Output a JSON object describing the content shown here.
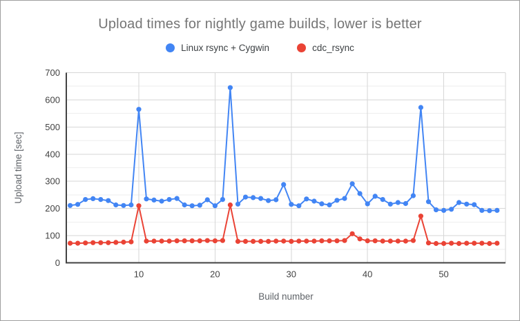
{
  "window": {
    "background": "#ffffff",
    "border_color": "#9e9e9e"
  },
  "colors": {
    "title_text": "#757575",
    "legend_text": "#3c4043",
    "tick_label_text": "#424242",
    "axis_title_text": "#5f6368",
    "axis_line": "#424242",
    "major_gridline": "#d6d6d6",
    "minor_gridline": "#eeeeee"
  },
  "chart_data": {
    "type": "line",
    "title": "Upload times for nightly game builds, lower is better",
    "xlabel": "Build number",
    "ylabel": "Upload time [sec]",
    "legend_position": "top",
    "grid": true,
    "ylim": [
      0,
      700
    ],
    "y_major_ticks": [
      0,
      100,
      200,
      300,
      400,
      500,
      600,
      700
    ],
    "y_minor_step": 50,
    "x_ticks": [
      10,
      20,
      30,
      40,
      50
    ],
    "x": [
      1,
      2,
      3,
      4,
      5,
      6,
      7,
      8,
      9,
      10,
      11,
      12,
      13,
      14,
      15,
      16,
      17,
      18,
      19,
      20,
      21,
      22,
      23,
      24,
      25,
      26,
      27,
      28,
      29,
      30,
      31,
      32,
      33,
      34,
      35,
      36,
      37,
      38,
      39,
      40,
      41,
      42,
      43,
      44,
      45,
      46,
      47,
      48,
      49,
      50,
      51,
      52,
      53,
      54,
      55,
      56,
      57
    ],
    "series": [
      {
        "name": "Linux rsync + Cygwin",
        "color": "#4285f4",
        "values": [
          211,
          215,
          233,
          236,
          233,
          229,
          213,
          211,
          213,
          565,
          235,
          231,
          227,
          233,
          237,
          213,
          210,
          212,
          232,
          210,
          233,
          645,
          216,
          242,
          240,
          237,
          229,
          232,
          288,
          215,
          210,
          235,
          227,
          217,
          213,
          230,
          237,
          291,
          255,
          217,
          245,
          233,
          216,
          222,
          218,
          247,
          572,
          225,
          195,
          193,
          197,
          222,
          216,
          214,
          193,
          192,
          193
        ]
      },
      {
        "name": "cdc_rsync",
        "color": "#ea4335",
        "values": [
          72,
          72,
          73,
          74,
          74,
          74,
          75,
          76,
          77,
          210,
          80,
          80,
          80,
          80,
          81,
          81,
          81,
          81,
          82,
          81,
          82,
          213,
          79,
          79,
          79,
          79,
          79,
          80,
          80,
          79,
          80,
          80,
          80,
          81,
          81,
          81,
          82,
          107,
          88,
          81,
          81,
          80,
          80,
          80,
          80,
          82,
          172,
          73,
          71,
          71,
          72,
          71,
          72,
          72,
          72,
          71,
          72
        ]
      }
    ]
  }
}
